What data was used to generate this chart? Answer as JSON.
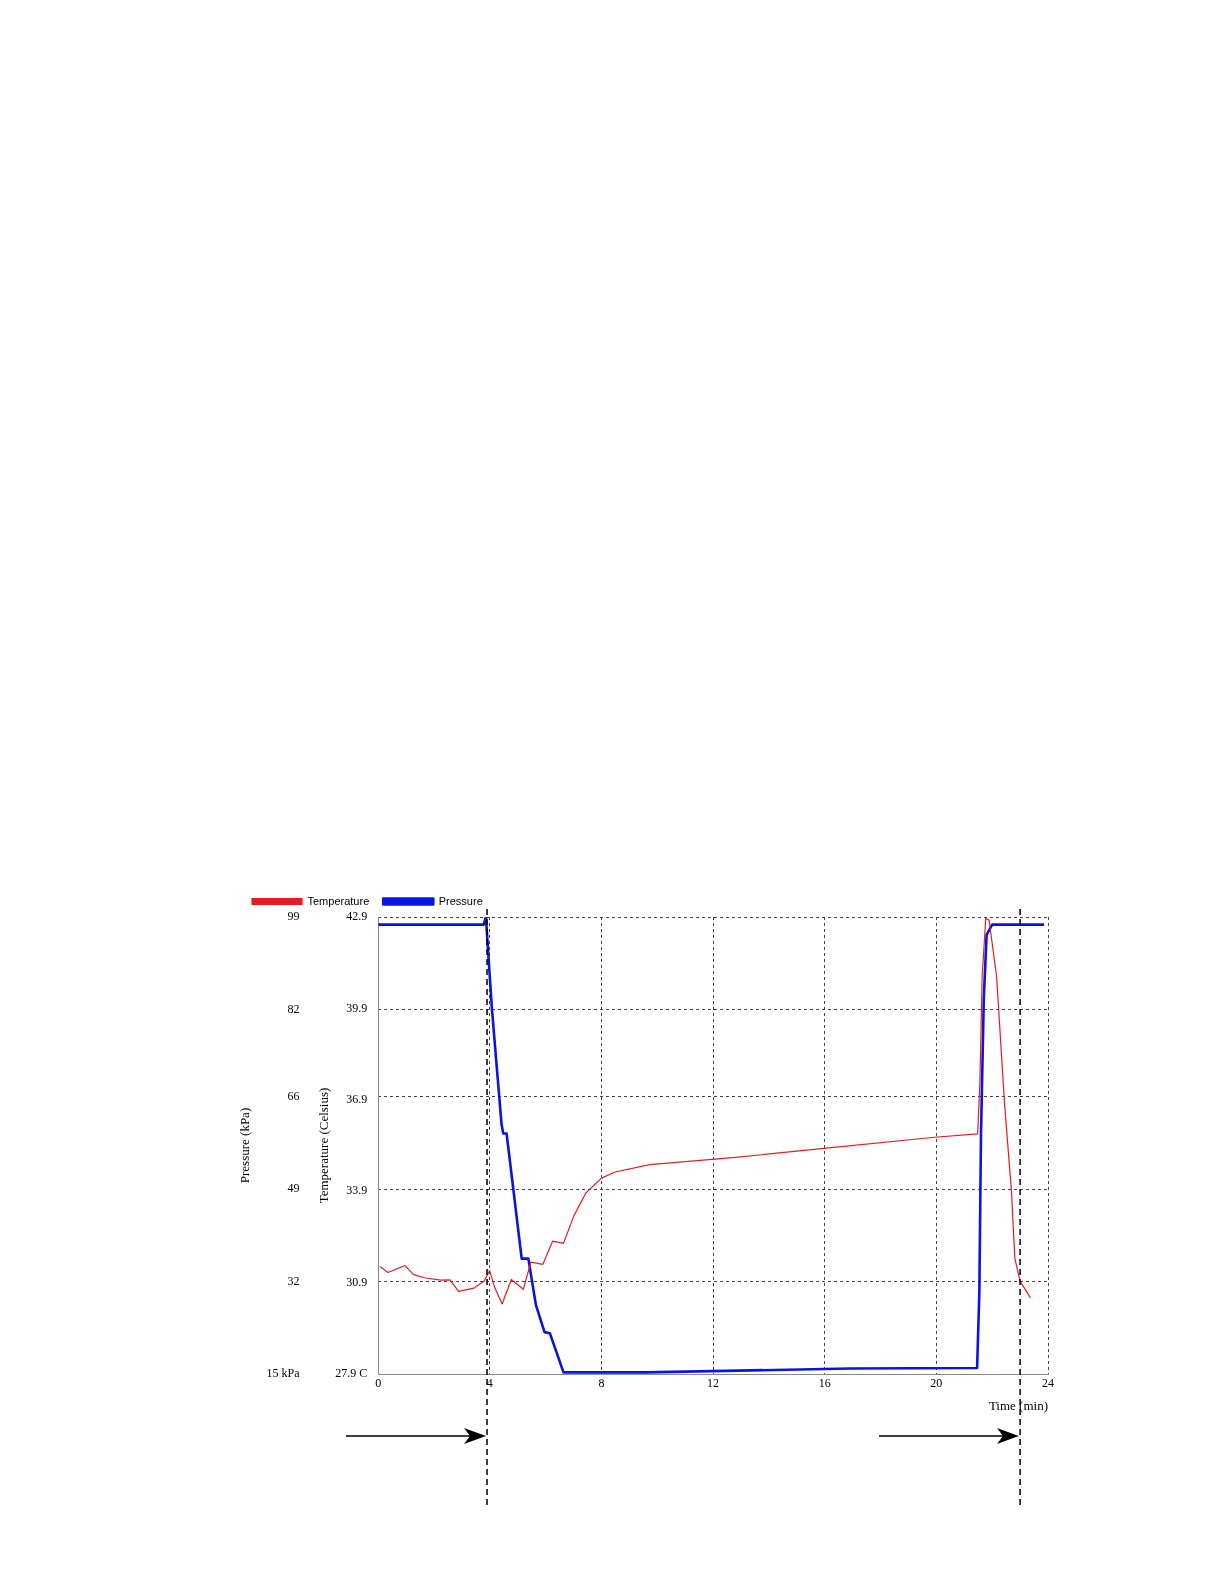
{
  "chart_data": {
    "type": "line",
    "xlabel": "Time (min)",
    "ylabel": "Pressure (kPa)",
    "y2label": "Temperature (Celsius)",
    "xlim": [
      0,
      24
    ],
    "xticks": [
      0,
      4,
      8,
      12,
      16,
      20,
      24
    ],
    "ylim": [
      15,
      99
    ],
    "yticks": [
      {
        "value": 15,
        "label": "15 kPa"
      },
      32,
      49,
      66,
      82,
      99
    ],
    "y2lim": [
      27.9,
      42.9
    ],
    "y2ticks": [
      {
        "value": 27.9,
        "label": "27.9 C"
      },
      30.9,
      33.9,
      36.9,
      39.9,
      42.9
    ],
    "grid": true,
    "legend": "top left",
    "marker": "none",
    "line_style": "solid",
    "ref_lines": [
      {
        "axis": "x",
        "value": 3.9,
        "color": "#000000",
        "line_style": "dashed"
      },
      {
        "axis": "x",
        "value": 23.0,
        "color": "#000000",
        "line_style": "dashed"
      }
    ],
    "series": [
      {
        "name": "Temperature",
        "color": "#e02020",
        "axis": "y2",
        "x": [
          0.07,
          0.35,
          0.96,
          1.27,
          1.7,
          2.26,
          2.57,
          2.88,
          3.43,
          3.8,
          3.99,
          4.17,
          4.44,
          4.77,
          5.2,
          5.47,
          5.9,
          6.25,
          6.64,
          7.01,
          7.44,
          8.0,
          8.49,
          9.73,
          12.81,
          16.15,
          19.94,
          21.48,
          21.56,
          21.64,
          21.77,
          21.89,
          22.16,
          22.44,
          22.69,
          22.81,
          23.0,
          23.37
        ],
        "values": [
          31.43,
          31.23,
          31.46,
          31.16,
          31.05,
          30.98,
          30.99,
          30.61,
          30.72,
          30.95,
          31.3,
          30.75,
          30.2,
          31.0,
          30.68,
          31.57,
          31.5,
          32.26,
          32.19,
          33.09,
          33.84,
          34.33,
          34.53,
          34.77,
          35.01,
          35.32,
          35.67,
          35.78,
          37.49,
          40.93,
          42.86,
          42.79,
          40.93,
          36.8,
          33.91,
          31.7,
          30.95,
          30.4
        ]
      },
      {
        "name": "Pressure",
        "color": "#0a14e0",
        "axis": "y",
        "x": [
          0,
          3.78,
          3.86,
          3.95,
          4.07,
          4.23,
          4.42,
          4.48,
          4.6,
          4.85,
          5.14,
          5.38,
          5.65,
          5.96,
          6.15,
          6.64,
          9.6,
          16.9,
          21.46,
          21.54,
          21.6,
          21.7,
          21.8,
          22.0,
          23.86
        ],
        "values": [
          97.6,
          97.6,
          99,
          91.8,
          82.5,
          72.5,
          60.9,
          59.2,
          59.2,
          48.6,
          36.2,
          36.2,
          27.7,
          22.7,
          22.5,
          15.3,
          15.3,
          16.0,
          16.1,
          30.0,
          59.4,
          84.1,
          95.7,
          97.6,
          97.6
        ]
      }
    ]
  }
}
